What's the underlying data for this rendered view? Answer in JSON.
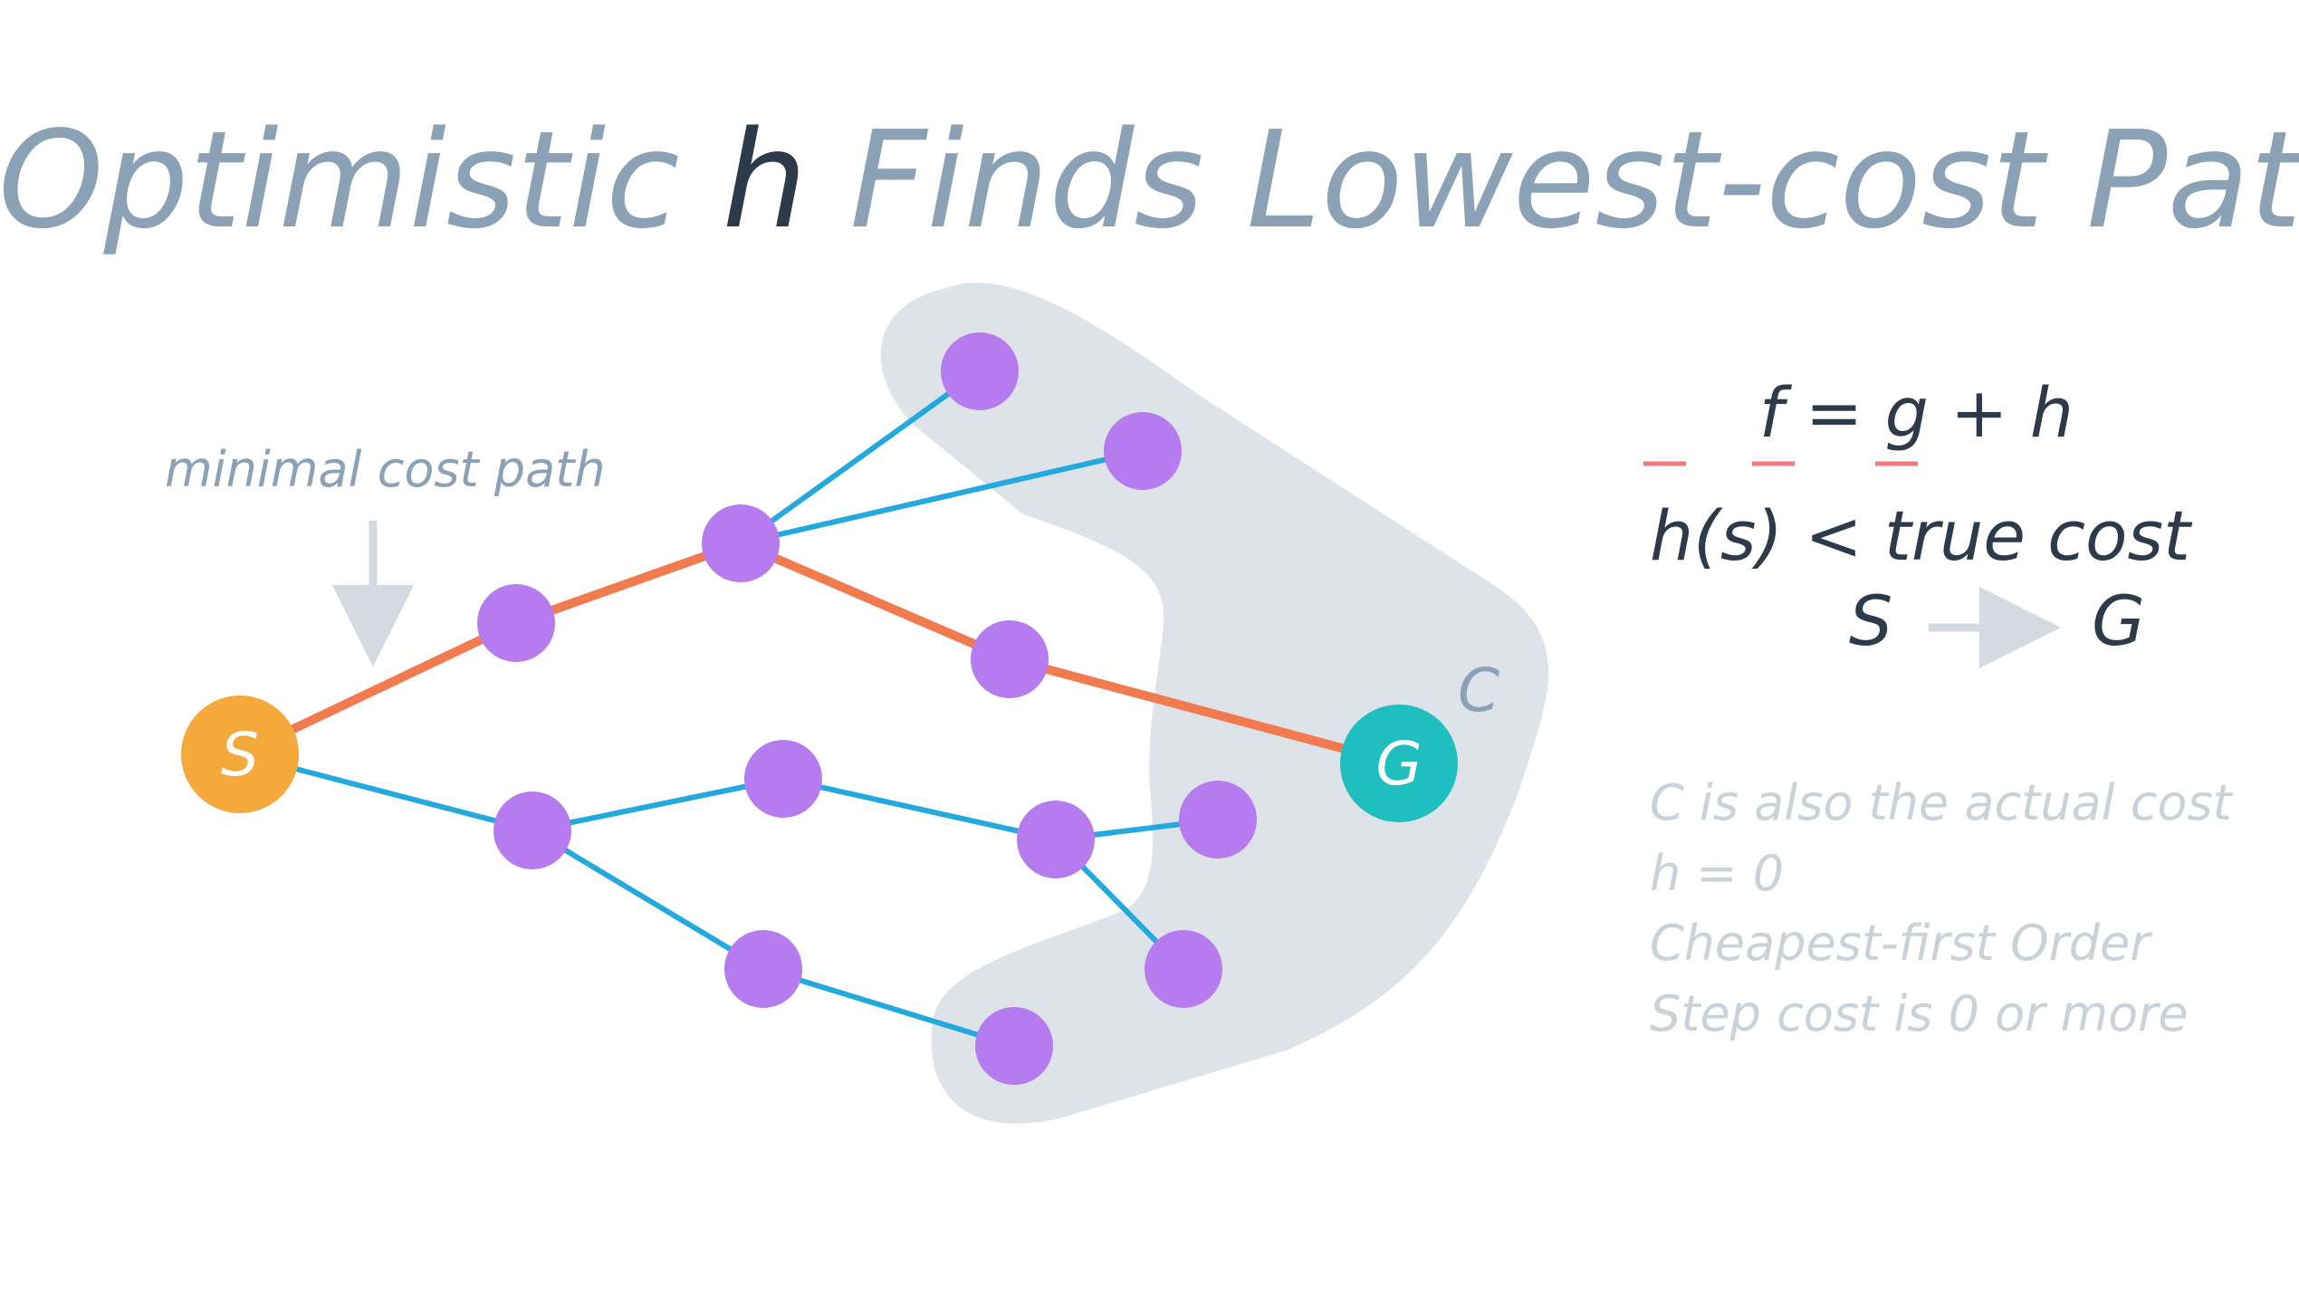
{
  "title": {
    "part1": "Optimistic ",
    "part2": "h",
    "part3": " Finds Lowest-cost Path"
  },
  "annotation": {
    "label": "minimal cost path"
  },
  "graph": {
    "start_label": "S",
    "goal_label": "G",
    "contour_label": "C",
    "colors": {
      "start": "#f6a93b",
      "goal": "#1fbfbf",
      "node": "#b57bef",
      "optimal_edge": "#f27a4f",
      "edge": "#23a9dd",
      "region": "#dde3e9"
    }
  },
  "equations": {
    "f": "f",
    "eq1": " = ",
    "g": "g",
    "plus": " + ",
    "h": "h",
    "line2": "h(s) < true cost",
    "from": "S",
    "to": "G",
    "underline_color": "#f4787f"
  },
  "notes": [
    "C is also the actual cost",
    "h = 0",
    "Cheapest-first Order",
    "Step cost is 0 or more"
  ]
}
